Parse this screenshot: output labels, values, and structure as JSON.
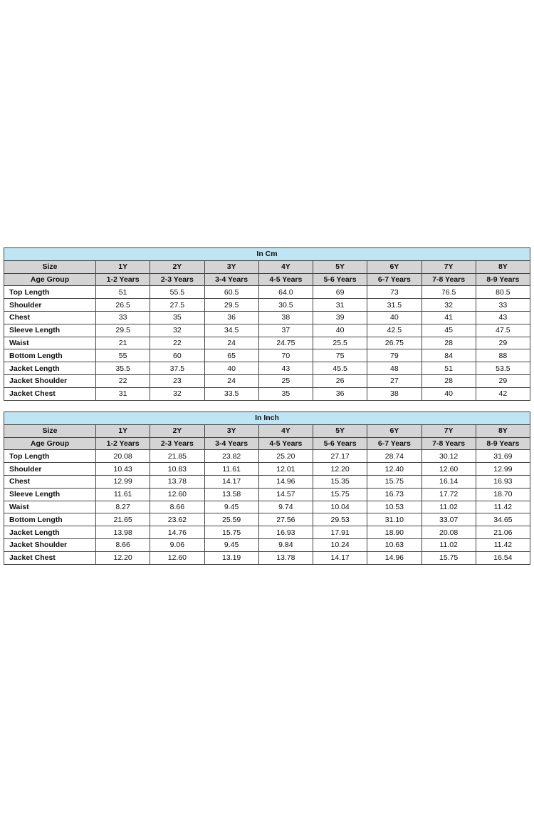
{
  "columns": {
    "size_label": "Size",
    "age_label": "Age Group",
    "sizes": [
      "1Y",
      "2Y",
      "3Y",
      "4Y",
      "5Y",
      "6Y",
      "7Y",
      "8Y"
    ],
    "ages": [
      "1-2 Years",
      "2-3 Years",
      "3-4 Years",
      "4-5 Years",
      "5-6 Years",
      "6-7 Years",
      "7-8 Years",
      "8-9 Years"
    ]
  },
  "tables": [
    {
      "title": "In Cm",
      "rows": [
        {
          "label": "Top Length",
          "values": [
            "51",
            "55.5",
            "60.5",
            "64.0",
            "69",
            "73",
            "76.5",
            "80.5"
          ]
        },
        {
          "label": "Shoulder",
          "values": [
            "26.5",
            "27.5",
            "29.5",
            "30.5",
            "31",
            "31.5",
            "32",
            "33"
          ]
        },
        {
          "label": "Chest",
          "values": [
            "33",
            "35",
            "36",
            "38",
            "39",
            "40",
            "41",
            "43"
          ]
        },
        {
          "label": "Sleeve Length",
          "values": [
            "29.5",
            "32",
            "34.5",
            "37",
            "40",
            "42.5",
            "45",
            "47.5"
          ]
        },
        {
          "label": "Waist",
          "values": [
            "21",
            "22",
            "24",
            "24.75",
            "25.5",
            "26.75",
            "28",
            "29"
          ]
        },
        {
          "label": "Bottom Length",
          "values": [
            "55",
            "60",
            "65",
            "70",
            "75",
            "79",
            "84",
            "88"
          ]
        },
        {
          "label": "Jacket Length",
          "values": [
            "35.5",
            "37.5",
            "40",
            "43",
            "45.5",
            "48",
            "51",
            "53.5"
          ]
        },
        {
          "label": "Jacket Shoulder",
          "values": [
            "22",
            "23",
            "24",
            "25",
            "26",
            "27",
            "28",
            "29"
          ]
        },
        {
          "label": "Jacket Chest",
          "values": [
            "31",
            "32",
            "33.5",
            "35",
            "36",
            "38",
            "40",
            "42"
          ]
        }
      ]
    },
    {
      "title": "In Inch",
      "rows": [
        {
          "label": "Top Length",
          "values": [
            "20.08",
            "21.85",
            "23.82",
            "25.20",
            "27.17",
            "28.74",
            "30.12",
            "31.69"
          ]
        },
        {
          "label": "Shoulder",
          "values": [
            "10.43",
            "10.83",
            "11.61",
            "12.01",
            "12.20",
            "12.40",
            "12.60",
            "12.99"
          ]
        },
        {
          "label": "Chest",
          "values": [
            "12.99",
            "13.78",
            "14.17",
            "14.96",
            "15.35",
            "15.75",
            "16.14",
            "16.93"
          ]
        },
        {
          "label": "Sleeve Length",
          "values": [
            "11.61",
            "12.60",
            "13.58",
            "14.57",
            "15.75",
            "16.73",
            "17.72",
            "18.70"
          ]
        },
        {
          "label": "Waist",
          "values": [
            "8.27",
            "8.66",
            "9.45",
            "9.74",
            "10.04",
            "10.53",
            "11.02",
            "11.42"
          ]
        },
        {
          "label": "Bottom Length",
          "values": [
            "21.65",
            "23.62",
            "25.59",
            "27.56",
            "29.53",
            "31.10",
            "33.07",
            "34.65"
          ]
        },
        {
          "label": "Jacket Length",
          "values": [
            "13.98",
            "14.76",
            "15.75",
            "16.93",
            "17.91",
            "18.90",
            "20.08",
            "21.06"
          ]
        },
        {
          "label": "Jacket Shoulder",
          "values": [
            "8.66",
            "9.06",
            "9.45",
            "9.84",
            "10.24",
            "10.63",
            "11.02",
            "11.42"
          ]
        },
        {
          "label": "Jacket Chest",
          "values": [
            "12.20",
            "12.60",
            "13.19",
            "13.78",
            "14.17",
            "14.96",
            "15.75",
            "16.54"
          ]
        }
      ]
    }
  ]
}
